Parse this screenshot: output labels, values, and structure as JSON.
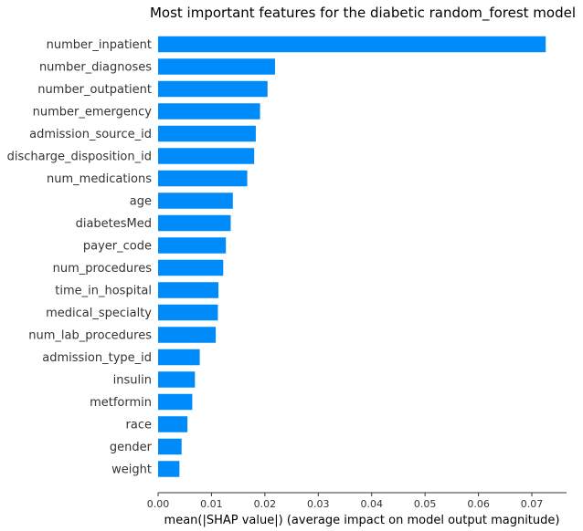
{
  "chart_data": {
    "type": "bar",
    "orientation": "horizontal",
    "title": "Most important features for the diabetic random_forest model",
    "xlabel": "mean(|SHAP value|) (average impact on model output magnitude)",
    "ylabel": "",
    "xlim": [
      0,
      0.0765
    ],
    "xticks": [
      0.0,
      0.01,
      0.02,
      0.03,
      0.04,
      0.05,
      0.06,
      0.07
    ],
    "xtick_labels": [
      "0.00",
      "0.01",
      "0.02",
      "0.03",
      "0.04",
      "0.05",
      "0.06",
      "0.07"
    ],
    "bar_color": "#008bfb",
    "grid": false,
    "categories": [
      "number_inpatient",
      "number_diagnoses",
      "number_outpatient",
      "number_emergency",
      "admission_source_id",
      "discharge_disposition_id",
      "num_medications",
      "age",
      "diabetesMed",
      "payer_code",
      "num_procedures",
      "time_in_hospital",
      "medical_specialty",
      "num_lab_procedures",
      "admission_type_id",
      "insulin",
      "metformin",
      "race",
      "gender",
      "weight"
    ],
    "values": [
      0.0726,
      0.0219,
      0.0205,
      0.0191,
      0.0183,
      0.018,
      0.0167,
      0.014,
      0.0136,
      0.0127,
      0.0122,
      0.0113,
      0.0112,
      0.0108,
      0.0078,
      0.0069,
      0.0064,
      0.0055,
      0.0044,
      0.004
    ]
  }
}
